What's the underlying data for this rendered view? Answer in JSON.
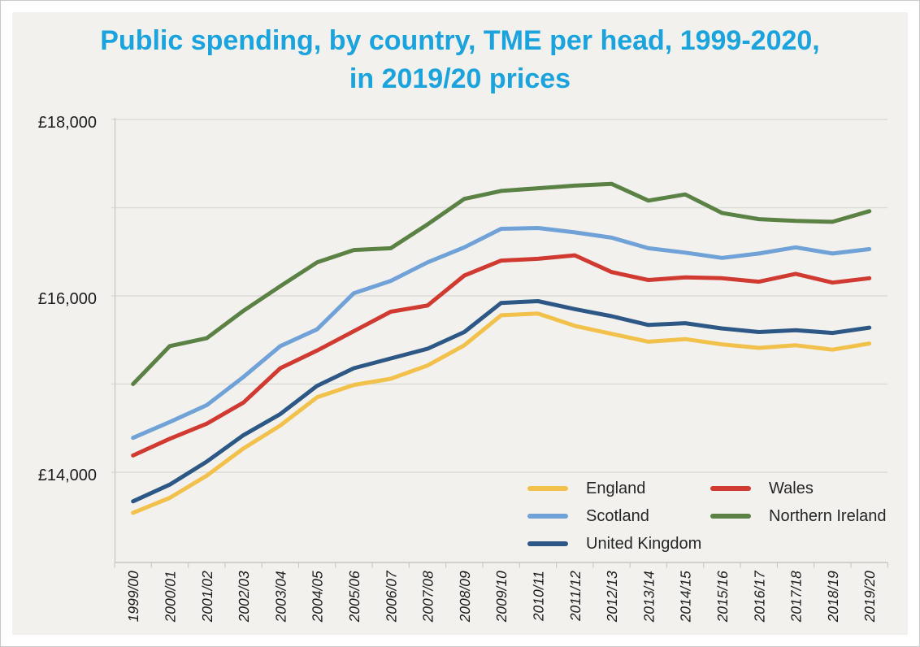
{
  "title": {
    "line1": "Public spending, by country, TME per head, 1999-2020,",
    "line2": "in 2019/20 prices"
  },
  "colors": {
    "title": "#1aa3dd",
    "panel_background": "#f2f1ee",
    "gridline": "#dbdbd7",
    "axis": "#c6c6c2",
    "text": "#1c1c1c",
    "england": "#f1c14b",
    "scotland": "#70a1d7",
    "united_kingdom": "#2d5785",
    "wales": "#d13a30",
    "northern_ireland": "#5b8144"
  },
  "chart_data": {
    "type": "line",
    "title": "Public spending, by country, TME per head, 1999-2020, in 2019/20 prices",
    "xlabel": "",
    "ylabel": "",
    "grid": true,
    "legend_position": "inside-bottom-right",
    "y_axis": {
      "min": 13000,
      "max": 18000,
      "gridlines": [
        18000,
        17000,
        16000,
        15000,
        14000
      ],
      "labeled_ticks": [
        {
          "label": "£18,000",
          "value": 18000
        },
        {
          "label": "£16,000",
          "value": 16000
        },
        {
          "label": "£14,000",
          "value": 14000
        }
      ]
    },
    "categories": [
      "1999/00",
      "2000/01",
      "2001/02",
      "2002/03",
      "2003/04",
      "2004/05",
      "2005/06",
      "2006/07",
      "2007/08",
      "2008/09",
      "2009/10",
      "2010/11",
      "2011/12",
      "2012/13",
      "2013/14",
      "2014/15",
      "2015/16",
      "2016/17",
      "2017/18",
      "2018/19",
      "2019/20"
    ],
    "series": [
      {
        "name": "England",
        "color_key": "england",
        "values": [
          13540,
          13710,
          13960,
          14270,
          14530,
          14850,
          14990,
          15060,
          15210,
          15440,
          15780,
          15800,
          15660,
          15570,
          15480,
          15510,
          15450,
          15410,
          15440,
          15390,
          15460
        ]
      },
      {
        "name": "Scotland",
        "color_key": "scotland",
        "values": [
          14390,
          14570,
          14760,
          15080,
          15430,
          15620,
          16030,
          16170,
          16380,
          16550,
          16760,
          16770,
          16720,
          16660,
          16540,
          16490,
          16430,
          16480,
          16550,
          16480,
          16530
        ]
      },
      {
        "name": "United Kingdom",
        "color_key": "united_kingdom",
        "values": [
          13670,
          13860,
          14120,
          14420,
          14660,
          14980,
          15180,
          15290,
          15400,
          15590,
          15920,
          15940,
          15850,
          15770,
          15670,
          15690,
          15630,
          15590,
          15610,
          15580,
          15640
        ]
      },
      {
        "name": "Wales",
        "color_key": "wales",
        "values": [
          14190,
          14380,
          14550,
          14790,
          15180,
          15380,
          15600,
          15820,
          15890,
          16230,
          16400,
          16420,
          16460,
          16270,
          16180,
          16210,
          16200,
          16160,
          16250,
          16150,
          16200
        ]
      },
      {
        "name": "Northern Ireland",
        "color_key": "northern_ireland",
        "values": [
          15000,
          15430,
          15520,
          15830,
          16110,
          16380,
          16520,
          16540,
          16810,
          17100,
          17190,
          17220,
          17250,
          17270,
          17080,
          17150,
          16940,
          16870,
          16850,
          16840,
          16960
        ]
      }
    ],
    "draw_order": [
      "Northern Ireland",
      "Scotland",
      "Wales",
      "United Kingdom",
      "England"
    ]
  },
  "legend": {
    "items": [
      {
        "label": "England"
      },
      {
        "label": "Wales"
      },
      {
        "label": "Scotland"
      },
      {
        "label": "Northern Ireland"
      },
      {
        "label": "United Kingdom"
      }
    ]
  }
}
